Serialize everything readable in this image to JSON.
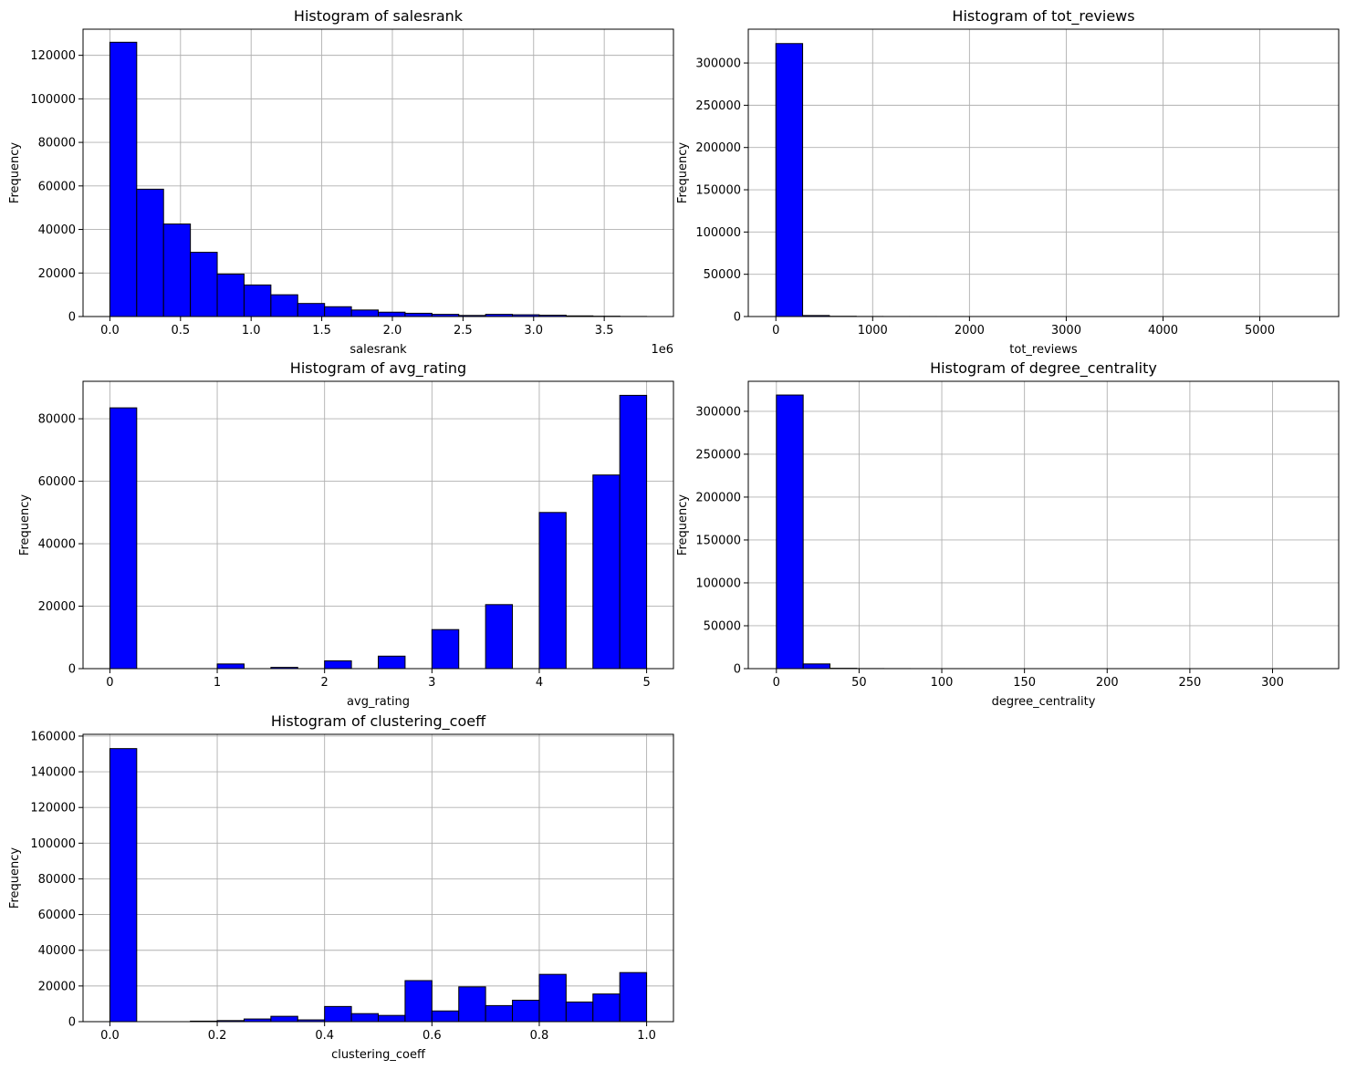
{
  "figure": {
    "background": "#ffffff",
    "bar_color": "#0000ff",
    "edge_color": "#000000",
    "grid_color": "#b0b0b0"
  },
  "chart_data": [
    {
      "type": "bar",
      "title": "Histogram of salesrank",
      "xlabel": "salesrank",
      "ylabel": "Frequency",
      "offset_label": "1e6",
      "xlim": [
        -0.19,
        3.99
      ],
      "ylim": [
        0,
        132000
      ],
      "bin_start": 0.0,
      "bin_width": 0.19,
      "values": [
        126000,
        58500,
        42500,
        29500,
        19500,
        14500,
        10000,
        6000,
        4500,
        3000,
        2000,
        1500,
        1000,
        500,
        1000,
        800,
        600,
        300,
        150,
        50
      ],
      "xticks": [
        0.0,
        0.5,
        1.0,
        1.5,
        2.0,
        2.5,
        3.0,
        3.5
      ],
      "xtick_labels": [
        "0.0",
        "0.5",
        "1.0",
        "1.5",
        "2.0",
        "2.5",
        "3.0",
        "3.5"
      ],
      "yticks": [
        0,
        20000,
        40000,
        60000,
        80000,
        100000,
        120000
      ],
      "ytick_labels": [
        "0",
        "20000",
        "40000",
        "60000",
        "80000",
        "100000",
        "120000"
      ]
    },
    {
      "type": "bar",
      "title": "Histogram of tot_reviews",
      "xlabel": "tot_reviews",
      "ylabel": "Frequency",
      "xlim": [
        -285,
        5815
      ],
      "ylim": [
        0,
        340000
      ],
      "bin_start": 0,
      "bin_width": 276.5,
      "values": [
        323000,
        1200,
        300,
        100,
        50,
        30,
        20,
        10,
        5,
        5,
        3,
        2,
        2,
        1,
        1,
        1,
        1,
        1,
        1,
        1
      ],
      "xticks": [
        0,
        1000,
        2000,
        3000,
        4000,
        5000
      ],
      "xtick_labels": [
        "0",
        "1000",
        "2000",
        "3000",
        "4000",
        "5000"
      ],
      "yticks": [
        0,
        50000,
        100000,
        150000,
        200000,
        250000,
        300000
      ],
      "ytick_labels": [
        "0",
        "50000",
        "100000",
        "150000",
        "200000",
        "250000",
        "300000"
      ]
    },
    {
      "type": "bar",
      "title": "Histogram of avg_rating",
      "xlabel": "avg_rating",
      "ylabel": "Frequency",
      "xlim": [
        -0.25,
        5.25
      ],
      "ylim": [
        0,
        92000
      ],
      "bin_start": 0.0,
      "bin_width": 0.25,
      "values": [
        83500,
        0,
        0,
        0,
        1500,
        0,
        400,
        0,
        2500,
        0,
        4000,
        0,
        12500,
        0,
        20500,
        0,
        50000,
        0,
        62000,
        87500
      ],
      "xticks": [
        0,
        1,
        2,
        3,
        4,
        5
      ],
      "xtick_labels": [
        "0",
        "1",
        "2",
        "3",
        "4",
        "5"
      ],
      "yticks": [
        0,
        20000,
        40000,
        60000,
        80000
      ],
      "ytick_labels": [
        "0",
        "20000",
        "40000",
        "60000",
        "80000"
      ]
    },
    {
      "type": "bar",
      "title": "Histogram of degree_centrality",
      "xlabel": "degree_centrality",
      "ylabel": "Frequency",
      "xlim": [
        -17,
        340
      ],
      "ylim": [
        0,
        335000
      ],
      "bin_start": 0,
      "bin_width": 16.2,
      "values": [
        319000,
        5500,
        400,
        100,
        50,
        20,
        10,
        5,
        3,
        2,
        1,
        1,
        1,
        1,
        1,
        1,
        1,
        1,
        1,
        1
      ],
      "xticks": [
        0,
        50,
        100,
        150,
        200,
        250,
        300
      ],
      "xtick_labels": [
        "0",
        "50",
        "100",
        "150",
        "200",
        "250",
        "300"
      ],
      "yticks": [
        0,
        50000,
        100000,
        150000,
        200000,
        250000,
        300000
      ],
      "ytick_labels": [
        "0",
        "50000",
        "100000",
        "150000",
        "200000",
        "250000",
        "300000"
      ]
    },
    {
      "type": "bar",
      "title": "Histogram of clustering_coeff",
      "xlabel": "clustering_coeff",
      "ylabel": "Frequency",
      "xlim": [
        -0.05,
        1.05
      ],
      "ylim": [
        0,
        161000
      ],
      "bin_start": 0.0,
      "bin_width": 0.05,
      "values": [
        153000,
        0,
        0,
        300,
        600,
        1500,
        3000,
        1000,
        8500,
        4500,
        3500,
        23000,
        6000,
        19500,
        9000,
        12000,
        26500,
        11000,
        15500,
        27500
      ],
      "xticks": [
        0.0,
        0.2,
        0.4,
        0.6,
        0.8,
        1.0
      ],
      "xtick_labels": [
        "0.0",
        "0.2",
        "0.4",
        "0.6",
        "0.8",
        "1.0"
      ],
      "yticks": [
        0,
        20000,
        40000,
        60000,
        80000,
        100000,
        120000,
        140000,
        160000
      ],
      "ytick_labels": [
        "0",
        "20000",
        "40000",
        "60000",
        "80000",
        "100000",
        "120000",
        "140000",
        "160000"
      ]
    }
  ]
}
